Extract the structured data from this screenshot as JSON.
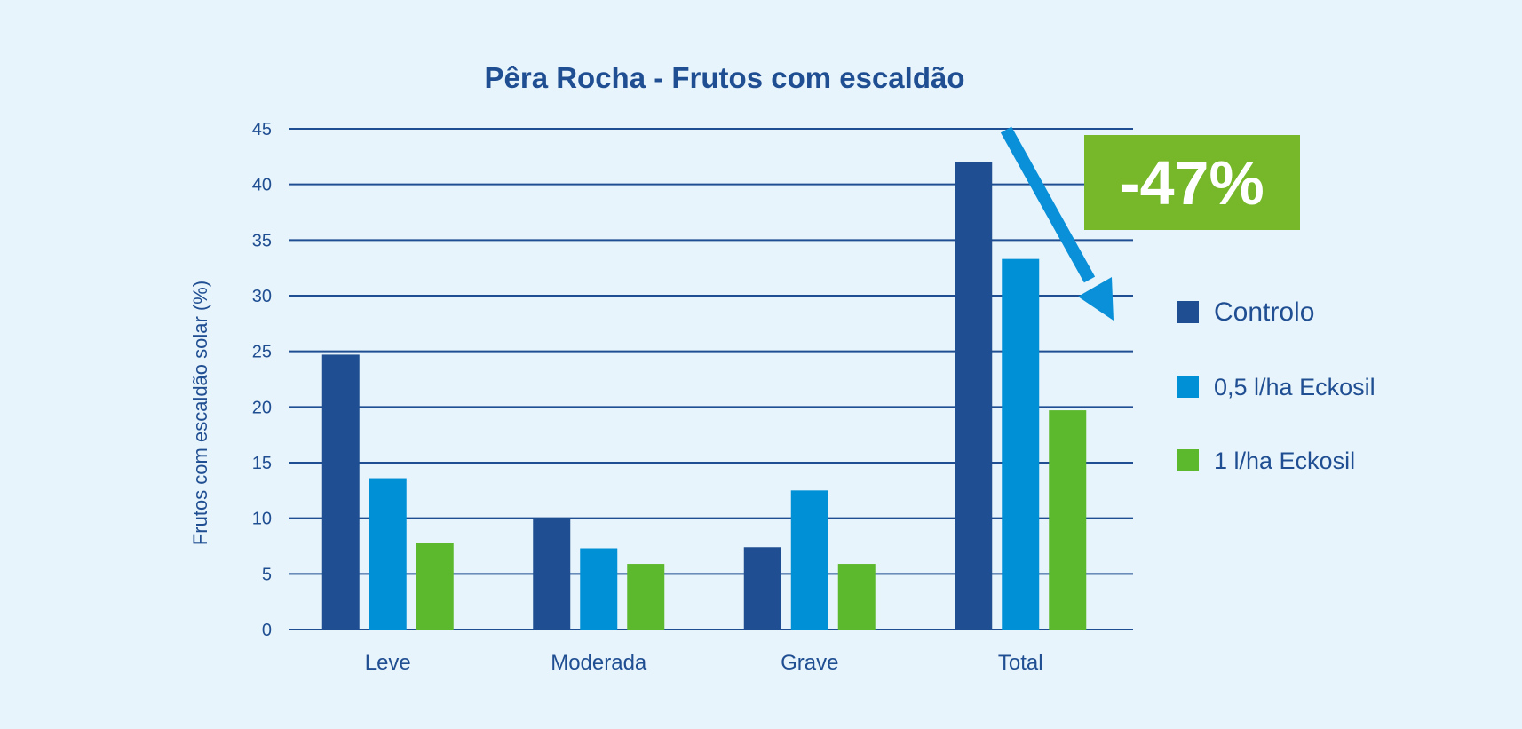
{
  "chart_data": {
    "type": "bar",
    "title": "Pêra Rocha - Frutos com escaldão",
    "ylabel": "Frutos com escaldão solar (%)",
    "xlabel": "",
    "categories": [
      "Leve",
      "Moderada",
      "Grave",
      "Total"
    ],
    "ylim": [
      0,
      45
    ],
    "yticks": [
      0,
      5,
      10,
      15,
      20,
      25,
      30,
      35,
      40,
      45
    ],
    "grid": true,
    "legend_position": "right",
    "series": [
      {
        "name": "Controlo",
        "color": "#1f4e92",
        "values": [
          24.7,
          10.0,
          7.4,
          42.0
        ]
      },
      {
        "name": "0,5 l/ha Eckosil",
        "color": "#0090d6",
        "values": [
          13.6,
          7.3,
          12.5,
          33.3
        ]
      },
      {
        "name": "1 l/ha Eckosil",
        "color": "#5cb82c",
        "values": [
          7.8,
          5.9,
          5.9,
          19.7
        ]
      }
    ],
    "annotation": {
      "text": "-47%",
      "badge_color": "#77b82a",
      "arrow_color": "#0a90d8"
    },
    "colors": {
      "text": "#1f4e92",
      "grid": "#1f4e92",
      "background": "#e8f4fb"
    }
  }
}
